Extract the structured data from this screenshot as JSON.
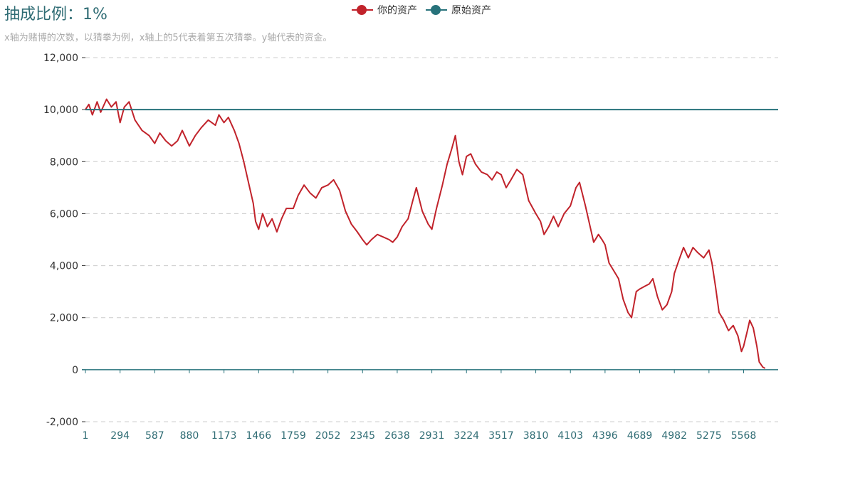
{
  "title": "抽成比例：1%",
  "subtitle": "x轴为赌博的次数，以猜拳为例，x轴上的5代表着第五次猜拳。y轴代表的资金。",
  "legend": [
    {
      "name": "你的资产",
      "color": "#c1232b"
    },
    {
      "name": "原始资产",
      "color": "#27727b"
    }
  ],
  "chart_data": {
    "type": "line",
    "title": "抽成比例：1%",
    "xlabel": "",
    "ylabel": "",
    "x_tick_labels": [
      "1",
      "294",
      "587",
      "880",
      "1173",
      "1466",
      "1759",
      "2052",
      "2345",
      "2638",
      "2931",
      "3224",
      "3517",
      "3810",
      "4103",
      "4396",
      "4689",
      "4982",
      "5275",
      "5568"
    ],
    "xlim": [
      1,
      5860
    ],
    "ylim": [
      -2000,
      12000
    ],
    "y_ticks": [
      -2000,
      0,
      2000,
      4000,
      6000,
      8000,
      10000,
      12000
    ],
    "y_tick_labels": [
      "-2,000",
      "0",
      "2,000",
      "4,000",
      "6,000",
      "8,000",
      "10,000",
      "12,000"
    ],
    "grid": "horizontal dashed",
    "legend_position": "top-center",
    "series": [
      {
        "name": "你的资产",
        "color": "#c1232b",
        "points": [
          [
            1,
            10000
          ],
          [
            30,
            10200
          ],
          [
            60,
            9800
          ],
          [
            100,
            10300
          ],
          [
            130,
            9900
          ],
          [
            180,
            10400
          ],
          [
            220,
            10100
          ],
          [
            260,
            10300
          ],
          [
            294,
            9500
          ],
          [
            330,
            10100
          ],
          [
            370,
            10300
          ],
          [
            420,
            9600
          ],
          [
            480,
            9200
          ],
          [
            540,
            9000
          ],
          [
            587,
            8700
          ],
          [
            630,
            9100
          ],
          [
            680,
            8800
          ],
          [
            730,
            8600
          ],
          [
            780,
            8800
          ],
          [
            820,
            9200
          ],
          [
            880,
            8600
          ],
          [
            930,
            9000
          ],
          [
            980,
            9300
          ],
          [
            1040,
            9600
          ],
          [
            1100,
            9400
          ],
          [
            1130,
            9800
          ],
          [
            1173,
            9500
          ],
          [
            1210,
            9700
          ],
          [
            1260,
            9200
          ],
          [
            1300,
            8700
          ],
          [
            1340,
            8000
          ],
          [
            1380,
            7200
          ],
          [
            1420,
            6400
          ],
          [
            1440,
            5700
          ],
          [
            1466,
            5400
          ],
          [
            1500,
            6000
          ],
          [
            1540,
            5500
          ],
          [
            1580,
            5800
          ],
          [
            1620,
            5300
          ],
          [
            1660,
            5800
          ],
          [
            1700,
            6200
          ],
          [
            1759,
            6200
          ],
          [
            1800,
            6700
          ],
          [
            1850,
            7100
          ],
          [
            1900,
            6800
          ],
          [
            1950,
            6600
          ],
          [
            2000,
            7000
          ],
          [
            2052,
            7100
          ],
          [
            2100,
            7300
          ],
          [
            2150,
            6900
          ],
          [
            2200,
            6100
          ],
          [
            2250,
            5600
          ],
          [
            2300,
            5300
          ],
          [
            2345,
            5000
          ],
          [
            2380,
            4800
          ],
          [
            2420,
            5000
          ],
          [
            2470,
            5200
          ],
          [
            2520,
            5100
          ],
          [
            2570,
            5000
          ],
          [
            2600,
            4900
          ],
          [
            2638,
            5100
          ],
          [
            2680,
            5500
          ],
          [
            2730,
            5800
          ],
          [
            2770,
            6500
          ],
          [
            2800,
            7000
          ],
          [
            2850,
            6100
          ],
          [
            2900,
            5600
          ],
          [
            2931,
            5400
          ],
          [
            2970,
            6200
          ],
          [
            3020,
            7100
          ],
          [
            3060,
            7900
          ],
          [
            3100,
            8500
          ],
          [
            3130,
            9000
          ],
          [
            3160,
            8000
          ],
          [
            3190,
            7500
          ],
          [
            3224,
            8200
          ],
          [
            3260,
            8300
          ],
          [
            3300,
            7900
          ],
          [
            3350,
            7600
          ],
          [
            3400,
            7500
          ],
          [
            3440,
            7300
          ],
          [
            3480,
            7600
          ],
          [
            3517,
            7500
          ],
          [
            3560,
            7000
          ],
          [
            3600,
            7300
          ],
          [
            3650,
            7700
          ],
          [
            3700,
            7500
          ],
          [
            3750,
            6500
          ],
          [
            3810,
            6000
          ],
          [
            3850,
            5700
          ],
          [
            3880,
            5200
          ],
          [
            3920,
            5500
          ],
          [
            3960,
            5900
          ],
          [
            4000,
            5500
          ],
          [
            4050,
            6000
          ],
          [
            4103,
            6300
          ],
          [
            4150,
            7000
          ],
          [
            4180,
            7200
          ],
          [
            4230,
            6300
          ],
          [
            4270,
            5500
          ],
          [
            4300,
            4900
          ],
          [
            4340,
            5200
          ],
          [
            4370,
            5000
          ],
          [
            4396,
            4800
          ],
          [
            4430,
            4100
          ],
          [
            4470,
            3800
          ],
          [
            4510,
            3500
          ],
          [
            4550,
            2700
          ],
          [
            4590,
            2200
          ],
          [
            4620,
            2000
          ],
          [
            4660,
            3000
          ],
          [
            4689,
            3100
          ],
          [
            4730,
            3200
          ],
          [
            4770,
            3300
          ],
          [
            4800,
            3500
          ],
          [
            4840,
            2800
          ],
          [
            4880,
            2300
          ],
          [
            4920,
            2500
          ],
          [
            4960,
            3000
          ],
          [
            4982,
            3700
          ],
          [
            5020,
            4200
          ],
          [
            5060,
            4700
          ],
          [
            5100,
            4300
          ],
          [
            5140,
            4700
          ],
          [
            5180,
            4500
          ],
          [
            5230,
            4300
          ],
          [
            5275,
            4600
          ],
          [
            5300,
            4100
          ],
          [
            5330,
            3200
          ],
          [
            5360,
            2200
          ],
          [
            5400,
            1900
          ],
          [
            5440,
            1500
          ],
          [
            5480,
            1700
          ],
          [
            5520,
            1300
          ],
          [
            5550,
            700
          ],
          [
            5568,
            900
          ],
          [
            5600,
            1500
          ],
          [
            5620,
            1900
          ],
          [
            5650,
            1600
          ],
          [
            5680,
            900
          ],
          [
            5700,
            300
          ],
          [
            5730,
            100
          ],
          [
            5750,
            50
          ]
        ]
      },
      {
        "name": "原始资产",
        "color": "#27727b",
        "points": [
          [
            1,
            10000
          ],
          [
            5860,
            10000
          ]
        ]
      }
    ]
  }
}
